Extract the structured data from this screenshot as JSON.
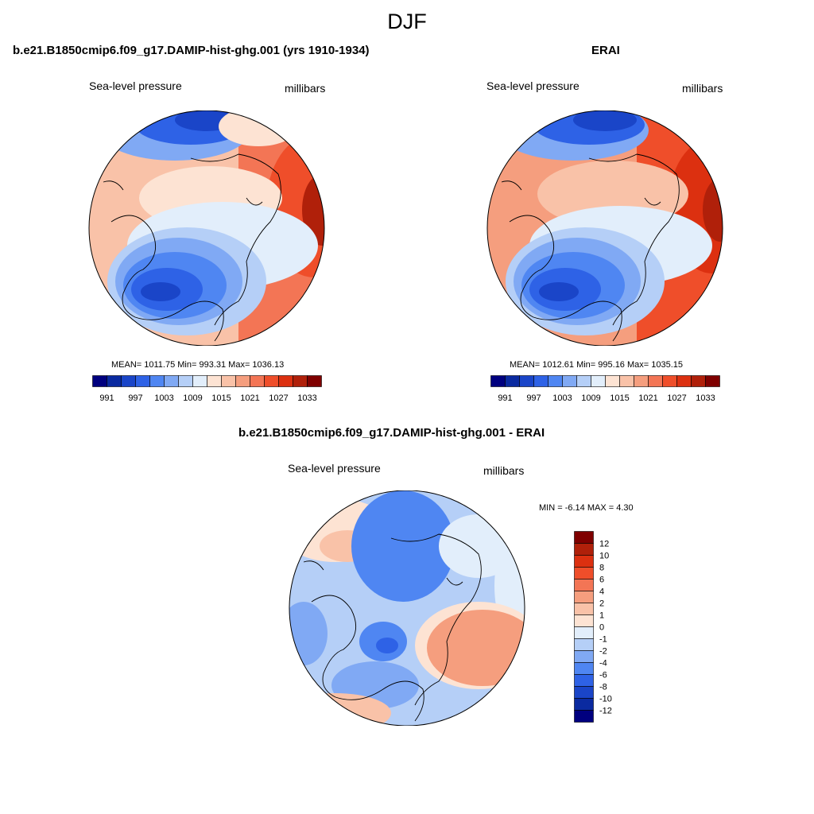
{
  "title": "DJF",
  "panels": {
    "model": {
      "title": "b.e21.B1850cmip6.f09_g17.DAMIP-hist-ghg.001 (yrs 1910-1934)",
      "left_label": "Sea-level pressure",
      "right_label": "millibars",
      "stats": "MEAN= 1011.75  Min= 993.31  Max= 1036.13"
    },
    "obs": {
      "title": "ERAI",
      "left_label": "Sea-level pressure",
      "right_label": "millibars",
      "stats": "MEAN= 1012.61  Min= 995.16  Max= 1035.15"
    },
    "diff": {
      "title": "b.e21.B1850cmip6.f09_g17.DAMIP-hist-ghg.001 - ERAI",
      "left_label": "Sea-level pressure",
      "right_label": "millibars",
      "stats": "MIN =  -6.14 MAX =   4.30"
    }
  },
  "colorbars": {
    "absolute": {
      "orientation": "horizontal",
      "colors": [
        "#00007f",
        "#0a2aa0",
        "#1a45c8",
        "#2e62e6",
        "#4f86f2",
        "#80a9f4",
        "#b5cff7",
        "#e2eefb",
        "#fde3d3",
        "#f9c2a8",
        "#f59e7e",
        "#f37555",
        "#ef4e2a",
        "#dc3010",
        "#b0200a",
        "#7f0000"
      ],
      "tick_labels": [
        "991",
        "997",
        "1003",
        "1009",
        "1015",
        "1021",
        "1027",
        "1033"
      ]
    },
    "difference": {
      "orientation": "vertical",
      "colors_top_to_bottom": [
        "#7f0000",
        "#b0200a",
        "#dc3010",
        "#ef4e2a",
        "#f37555",
        "#f59e7e",
        "#f9c2a8",
        "#fde3d3",
        "#e2eefb",
        "#b5cff7",
        "#80a9f4",
        "#4f86f2",
        "#2e62e6",
        "#1a45c8",
        "#0a2aa0",
        "#00007f"
      ],
      "tick_labels": [
        "12",
        "10",
        "8",
        "6",
        "4",
        "2",
        "1",
        "0",
        "-1",
        "-2",
        "-4",
        "-6",
        "-8",
        "-10",
        "-12"
      ]
    }
  }
}
